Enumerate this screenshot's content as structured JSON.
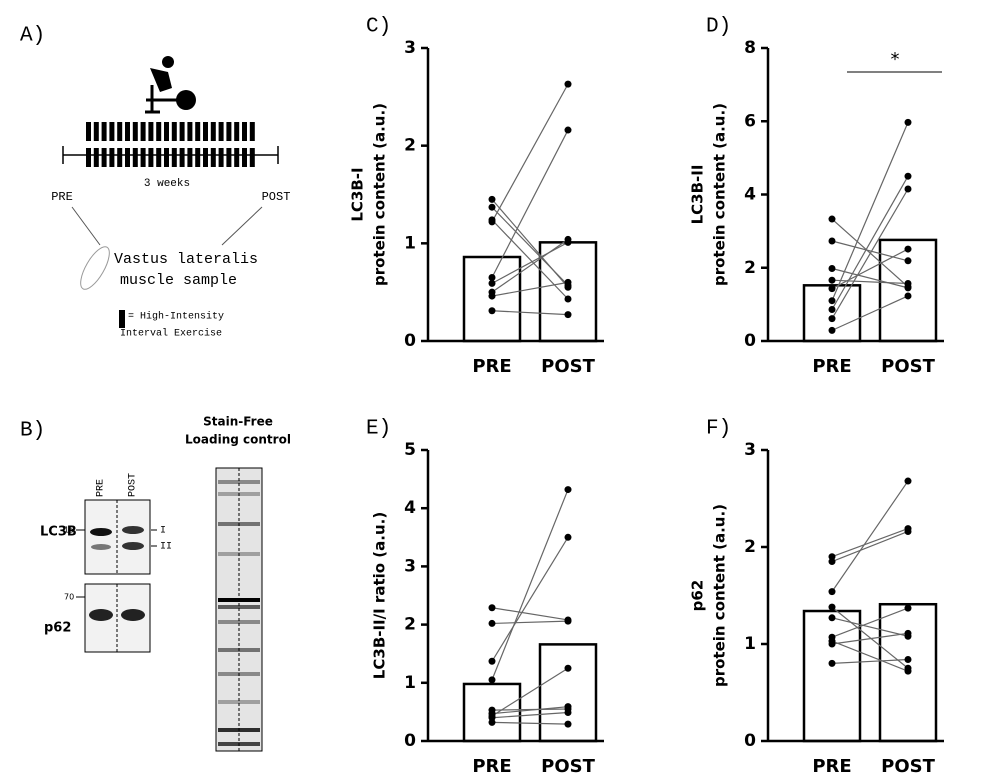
{
  "panel_a": {
    "label": "A)",
    "duration": "3 weeks",
    "pre": "PRE",
    "post": "POST",
    "sample": [
      "Vastus lateralis",
      "muscle sample"
    ],
    "legend": [
      "= High-Intensity",
      "Interval Exercise"
    ]
  },
  "panel_b": {
    "label": "B)",
    "loading_title": [
      "Stain-Free",
      "Loading control"
    ],
    "lanes": [
      "PRE",
      "POST"
    ],
    "blots": [
      "LC3B",
      "p62"
    ],
    "markers": [
      "15",
      "70"
    ],
    "bands": [
      "I",
      "II"
    ]
  },
  "chart_data": [
    {
      "type": "bar",
      "panel": "C)",
      "y_label": [
        "LC3B-I",
        "protein content (a.u.)"
      ],
      "categories": [
        "PRE",
        "POST"
      ],
      "values": [
        0.86,
        1.01
      ],
      "ylim": [
        0,
        3
      ],
      "yticks": [
        0,
        1,
        2,
        3
      ],
      "subjects": [
        [
          1.45,
          0.55
        ],
        [
          1.37,
          0.57
        ],
        [
          1.22,
          2.63
        ],
        [
          1.24,
          0.43
        ],
        [
          0.65,
          2.16
        ],
        [
          0.59,
          1.01
        ],
        [
          0.5,
          1.04
        ],
        [
          0.46,
          0.6
        ],
        [
          0.31,
          0.27
        ]
      ]
    },
    {
      "type": "bar",
      "panel": "D)",
      "y_label": [
        "LC3B-II",
        "protein content (a.u.)"
      ],
      "categories": [
        "PRE",
        "POST"
      ],
      "values": [
        1.52,
        2.76
      ],
      "ylim": [
        0,
        8
      ],
      "yticks": [
        0,
        2,
        4,
        6,
        8
      ],
      "significance": "*",
      "subjects": [
        [
          3.33,
          1.48
        ],
        [
          2.73,
          2.19
        ],
        [
          1.98,
          1.45
        ],
        [
          1.66,
          1.57
        ],
        [
          1.43,
          2.51
        ],
        [
          1.1,
          5.97
        ],
        [
          0.86,
          4.5
        ],
        [
          0.61,
          4.15
        ],
        [
          0.29,
          1.23
        ]
      ]
    },
    {
      "type": "bar",
      "panel": "E)",
      "y_label": [
        "LC3B-II/I ratio (a.u.)"
      ],
      "categories": [
        "PRE",
        "POST"
      ],
      "values": [
        0.98,
        1.66
      ],
      "ylim": [
        0,
        5
      ],
      "yticks": [
        0,
        1,
        2,
        3,
        4,
        5
      ],
      "subjects": [
        [
          2.29,
          2.08
        ],
        [
          2.02,
          2.06
        ],
        [
          1.37,
          3.5
        ],
        [
          1.05,
          4.32
        ],
        [
          0.53,
          0.55
        ],
        [
          0.47,
          0.59
        ],
        [
          0.43,
          1.25
        ],
        [
          0.4,
          0.49
        ],
        [
          0.32,
          0.29
        ]
      ]
    },
    {
      "type": "bar",
      "panel": "F)",
      "y_label": [
        "p62",
        "protein content (a.u.)"
      ],
      "categories": [
        "PRE",
        "POST"
      ],
      "values": [
        1.34,
        1.41
      ],
      "ylim": [
        0,
        3
      ],
      "yticks": [
        0,
        1,
        2,
        3
      ],
      "subjects": [
        [
          1.9,
          2.19
        ],
        [
          1.85,
          2.16
        ],
        [
          1.54,
          2.68
        ],
        [
          1.38,
          0.75
        ],
        [
          1.27,
          1.08
        ],
        [
          1.07,
          1.37
        ],
        [
          1.03,
          0.72
        ],
        [
          1.0,
          1.11
        ],
        [
          0.8,
          0.84
        ]
      ]
    }
  ]
}
